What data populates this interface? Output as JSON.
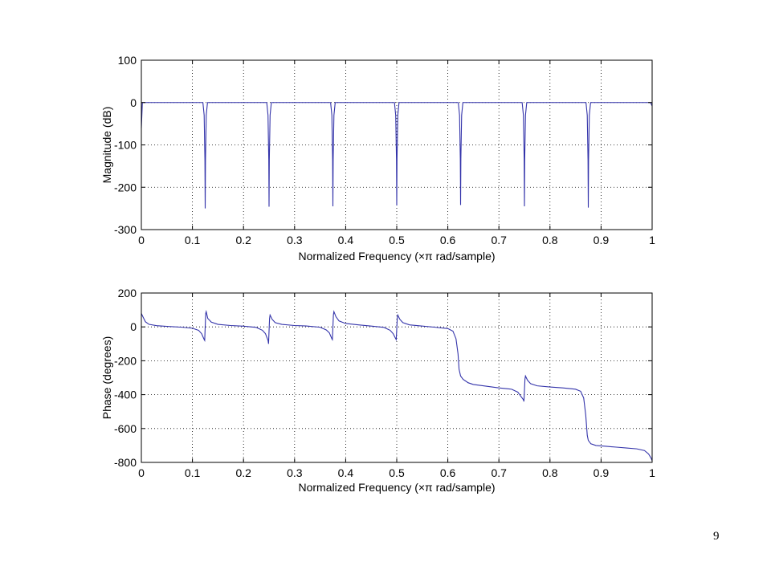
{
  "page": {
    "number": "9"
  },
  "chart_data": [
    {
      "type": "line",
      "name": "magnitude",
      "xlabel": "Normalized Frequency  (×π rad/sample)",
      "ylabel": "Magnitude (dB)",
      "xlim": [
        0,
        1
      ],
      "ylim": [
        -300,
        100
      ],
      "xticks": [
        0,
        0.1,
        0.2,
        0.3,
        0.4,
        0.5,
        0.6,
        0.7,
        0.8,
        0.9,
        1
      ],
      "xtick_labels": [
        "0",
        "0.1",
        "0.2",
        "0.3",
        "0.4",
        "0.5",
        "0.6",
        "0.7",
        "0.8",
        "0.9",
        "1"
      ],
      "yticks": [
        100,
        0,
        -100,
        -200,
        -300
      ],
      "ytick_labels": [
        "100",
        "0",
        "-100",
        "-200",
        "-300"
      ],
      "grid": true,
      "color": "#3333aa",
      "baseline_db": 0,
      "notch_halfwidth": 0.0045,
      "notches": [
        {
          "x": 0.125,
          "depth": -250
        },
        {
          "x": 0.25,
          "depth": -246
        },
        {
          "x": 0.375,
          "depth": -245
        },
        {
          "x": 0.5,
          "depth": -243
        },
        {
          "x": 0.625,
          "depth": -242
        },
        {
          "x": 0.75,
          "depth": -245
        },
        {
          "x": 0.875,
          "depth": -248
        }
      ],
      "edge_dips": [
        {
          "x": 0.0,
          "y": -60
        },
        {
          "x": 1.0,
          "y": -8
        }
      ]
    },
    {
      "type": "line",
      "name": "phase",
      "xlabel": "Normalized Frequency  (×π rad/sample)",
      "ylabel": "Phase (degrees)",
      "xlim": [
        0,
        1
      ],
      "ylim": [
        -800,
        200
      ],
      "xticks": [
        0,
        0.1,
        0.2,
        0.3,
        0.4,
        0.5,
        0.6,
        0.7,
        0.8,
        0.9,
        1
      ],
      "xtick_labels": [
        "0",
        "0.1",
        "0.2",
        "0.3",
        "0.4",
        "0.5",
        "0.6",
        "0.7",
        "0.8",
        "0.9",
        "1"
      ],
      "yticks": [
        200,
        0,
        -200,
        -400,
        -600,
        -800
      ],
      "ytick_labels": [
        "200",
        "0",
        "-200",
        "-400",
        "-600",
        "-800"
      ],
      "grid": true,
      "color": "#3333aa",
      "points": [
        [
          0.0,
          80
        ],
        [
          0.003,
          60
        ],
        [
          0.008,
          30
        ],
        [
          0.015,
          15
        ],
        [
          0.03,
          7
        ],
        [
          0.05,
          3
        ],
        [
          0.08,
          -2
        ],
        [
          0.1,
          -8
        ],
        [
          0.112,
          -20
        ],
        [
          0.118,
          -40
        ],
        [
          0.123,
          -75
        ],
        [
          0.124,
          -80
        ],
        [
          0.126,
          80
        ],
        [
          0.127,
          90
        ],
        [
          0.13,
          50
        ],
        [
          0.137,
          28
        ],
        [
          0.15,
          15
        ],
        [
          0.175,
          8
        ],
        [
          0.2,
          4
        ],
        [
          0.225,
          -3
        ],
        [
          0.237,
          -20
        ],
        [
          0.243,
          -40
        ],
        [
          0.248,
          -80
        ],
        [
          0.249,
          -100
        ],
        [
          0.251,
          50
        ],
        [
          0.252,
          70
        ],
        [
          0.256,
          45
        ],
        [
          0.262,
          25
        ],
        [
          0.275,
          15
        ],
        [
          0.3,
          8
        ],
        [
          0.325,
          5
        ],
        [
          0.35,
          -2
        ],
        [
          0.362,
          -18
        ],
        [
          0.368,
          -35
        ],
        [
          0.373,
          -70
        ],
        [
          0.374,
          -75
        ],
        [
          0.376,
          70
        ],
        [
          0.377,
          90
        ],
        [
          0.381,
          60
        ],
        [
          0.387,
          35
        ],
        [
          0.4,
          20
        ],
        [
          0.425,
          12
        ],
        [
          0.45,
          5
        ],
        [
          0.475,
          -3
        ],
        [
          0.487,
          -20
        ],
        [
          0.493,
          -40
        ],
        [
          0.498,
          -70
        ],
        [
          0.499,
          -75
        ],
        [
          0.501,
          50
        ],
        [
          0.502,
          70
        ],
        [
          0.506,
          45
        ],
        [
          0.512,
          25
        ],
        [
          0.525,
          12
        ],
        [
          0.55,
          5
        ],
        [
          0.575,
          -2
        ],
        [
          0.6,
          -10
        ],
        [
          0.61,
          -25
        ],
        [
          0.616,
          -70
        ],
        [
          0.62,
          -160
        ],
        [
          0.622,
          -250
        ],
        [
          0.625,
          -290
        ],
        [
          0.63,
          -310
        ],
        [
          0.64,
          -330
        ],
        [
          0.65,
          -340
        ],
        [
          0.675,
          -350
        ],
        [
          0.7,
          -360
        ],
        [
          0.725,
          -368
        ],
        [
          0.737,
          -385
        ],
        [
          0.743,
          -410
        ],
        [
          0.748,
          -430
        ],
        [
          0.749,
          -440
        ],
        [
          0.751,
          -310
        ],
        [
          0.752,
          -290
        ],
        [
          0.756,
          -315
        ],
        [
          0.762,
          -335
        ],
        [
          0.775,
          -348
        ],
        [
          0.8,
          -355
        ],
        [
          0.825,
          -360
        ],
        [
          0.85,
          -368
        ],
        [
          0.86,
          -380
        ],
        [
          0.866,
          -420
        ],
        [
          0.87,
          -520
        ],
        [
          0.873,
          -640
        ],
        [
          0.875,
          -670
        ],
        [
          0.88,
          -690
        ],
        [
          0.89,
          -700
        ],
        [
          0.91,
          -705
        ],
        [
          0.93,
          -710
        ],
        [
          0.95,
          -715
        ],
        [
          0.97,
          -720
        ],
        [
          0.985,
          -730
        ],
        [
          0.993,
          -750
        ],
        [
          0.998,
          -775
        ],
        [
          1.0,
          -790
        ]
      ]
    }
  ]
}
